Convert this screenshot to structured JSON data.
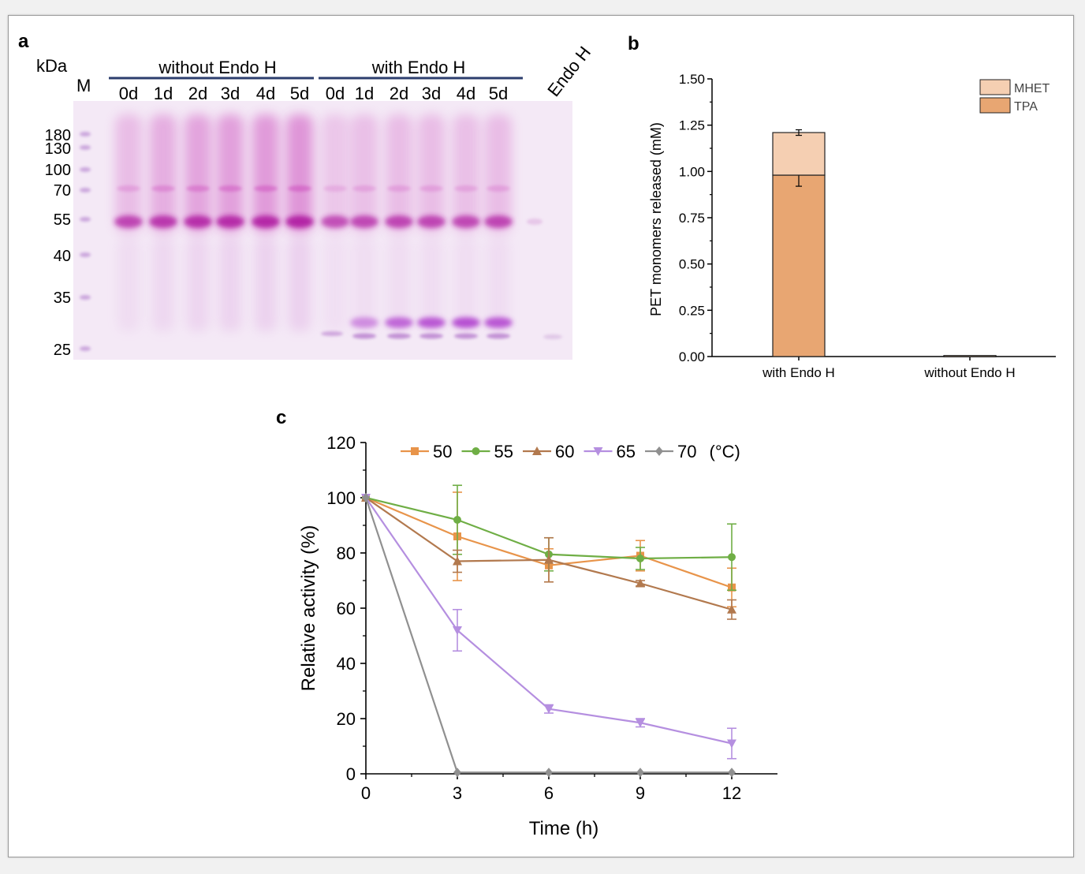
{
  "panels": {
    "a": {
      "label": "a",
      "kda_label": "kDa",
      "marker_label": "M",
      "group_without": "without Endo H",
      "group_with": "with Endo H",
      "endo_lane_label": "Endo H",
      "lane_labels_without": [
        "0d",
        "1d",
        "2d",
        "3d",
        "4d",
        "5d"
      ],
      "lane_labels_with": [
        "0d",
        "1d",
        "2d",
        "3d",
        "4d",
        "5d"
      ],
      "marker_sizes": [
        "180",
        "130",
        "100",
        "70",
        "55",
        "40",
        "35",
        "25"
      ]
    },
    "b": {
      "label": "b"
    },
    "c": {
      "label": "c"
    }
  },
  "chart_data": [
    {
      "panel": "b",
      "type": "bar",
      "stacked": true,
      "categories": [
        "with Endo H",
        "without Endo H"
      ],
      "series": [
        {
          "name": "TPA",
          "values": [
            0.98,
            0.005
          ],
          "errors": [
            0.06,
            0
          ],
          "color": "#E8A672"
        },
        {
          "name": "MHET",
          "values": [
            0.23,
            0.0
          ],
          "errors": [
            0.015,
            0
          ],
          "color": "#F5CFB2"
        }
      ],
      "xlabel": "",
      "ylabel": "PET monomers released (mM)",
      "ylim": [
        0,
        1.5
      ],
      "yticks": [
        "0.00",
        "0.25",
        "0.50",
        "0.75",
        "1.00",
        "1.25",
        "1.50"
      ],
      "legend_position": "top-right",
      "legend": [
        "MHET",
        "TPA"
      ]
    },
    {
      "panel": "c",
      "type": "line",
      "x": [
        0,
        3,
        6,
        9,
        12
      ],
      "xticks": [
        "0",
        "3",
        "6",
        "9",
        "12"
      ],
      "yticks": [
        "0",
        "20",
        "40",
        "60",
        "80",
        "100",
        "120"
      ],
      "xlabel": "Time (h)",
      "ylabel": "Relative activity (%)",
      "xlim": [
        0,
        13.5
      ],
      "ylim": [
        0,
        120
      ],
      "legend_suffix": "(°C)",
      "legend_position": "top",
      "series": [
        {
          "name": "50",
          "marker": "square",
          "color": "#E8944A",
          "values": [
            100,
            86,
            75.5,
            79,
            67.5
          ],
          "errors": [
            0,
            16,
            6,
            5.5,
            7
          ]
        },
        {
          "name": "55",
          "marker": "circle",
          "color": "#6FAE45",
          "values": [
            100,
            92,
            79.5,
            78,
            78.5
          ],
          "errors": [
            0,
            12.5,
            6,
            4,
            12
          ]
        },
        {
          "name": "60",
          "marker": "triangle-up",
          "color": "#B2794E",
          "values": [
            100,
            77,
            77.5,
            69,
            59.5
          ],
          "errors": [
            0,
            4,
            8,
            1,
            3.5
          ]
        },
        {
          "name": "65",
          "marker": "triangle-down",
          "color": "#B58FE0",
          "values": [
            100,
            52,
            23.5,
            18.5,
            11
          ],
          "errors": [
            0,
            7.5,
            1.5,
            1.5,
            5.5
          ]
        },
        {
          "name": "70",
          "marker": "diamond",
          "color": "#909090",
          "values": [
            100,
            0.5,
            0.5,
            0.5,
            0.5
          ],
          "errors": [
            0,
            0,
            0,
            0,
            0
          ]
        }
      ]
    }
  ]
}
